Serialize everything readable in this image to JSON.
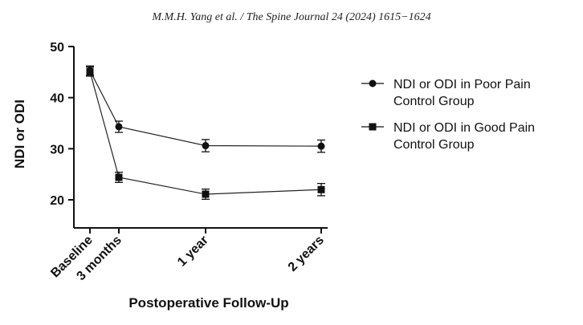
{
  "header": "M.M.H. Yang et al. / The Spine Journal 24 (2024) 1615−1624",
  "chart_data": {
    "type": "line",
    "categories": [
      "Baseline",
      "3 months",
      "1 year",
      "2 years"
    ],
    "x_months": [
      0,
      3,
      12,
      24
    ],
    "xlabel": "Postoperative Follow-Up",
    "ylabel": "NDI or ODI",
    "ylim": [
      15,
      50
    ],
    "yticks": [
      20,
      30,
      40,
      50
    ],
    "grid": false,
    "legend_position": "right",
    "series": [
      {
        "name_lines": [
          "NDI or ODI in Poor Pain",
          "Control Group"
        ],
        "marker": "circle",
        "values": [
          45.3,
          34.3,
          30.6,
          30.5
        ],
        "error": [
          0.9,
          1.1,
          1.2,
          1.2
        ]
      },
      {
        "name_lines": [
          "NDI or ODI in Good Pain",
          "Control Group"
        ],
        "marker": "square",
        "values": [
          45.1,
          24.4,
          21.1,
          22.0
        ],
        "error": [
          0.9,
          1.0,
          1.0,
          1.2
        ]
      }
    ]
  }
}
